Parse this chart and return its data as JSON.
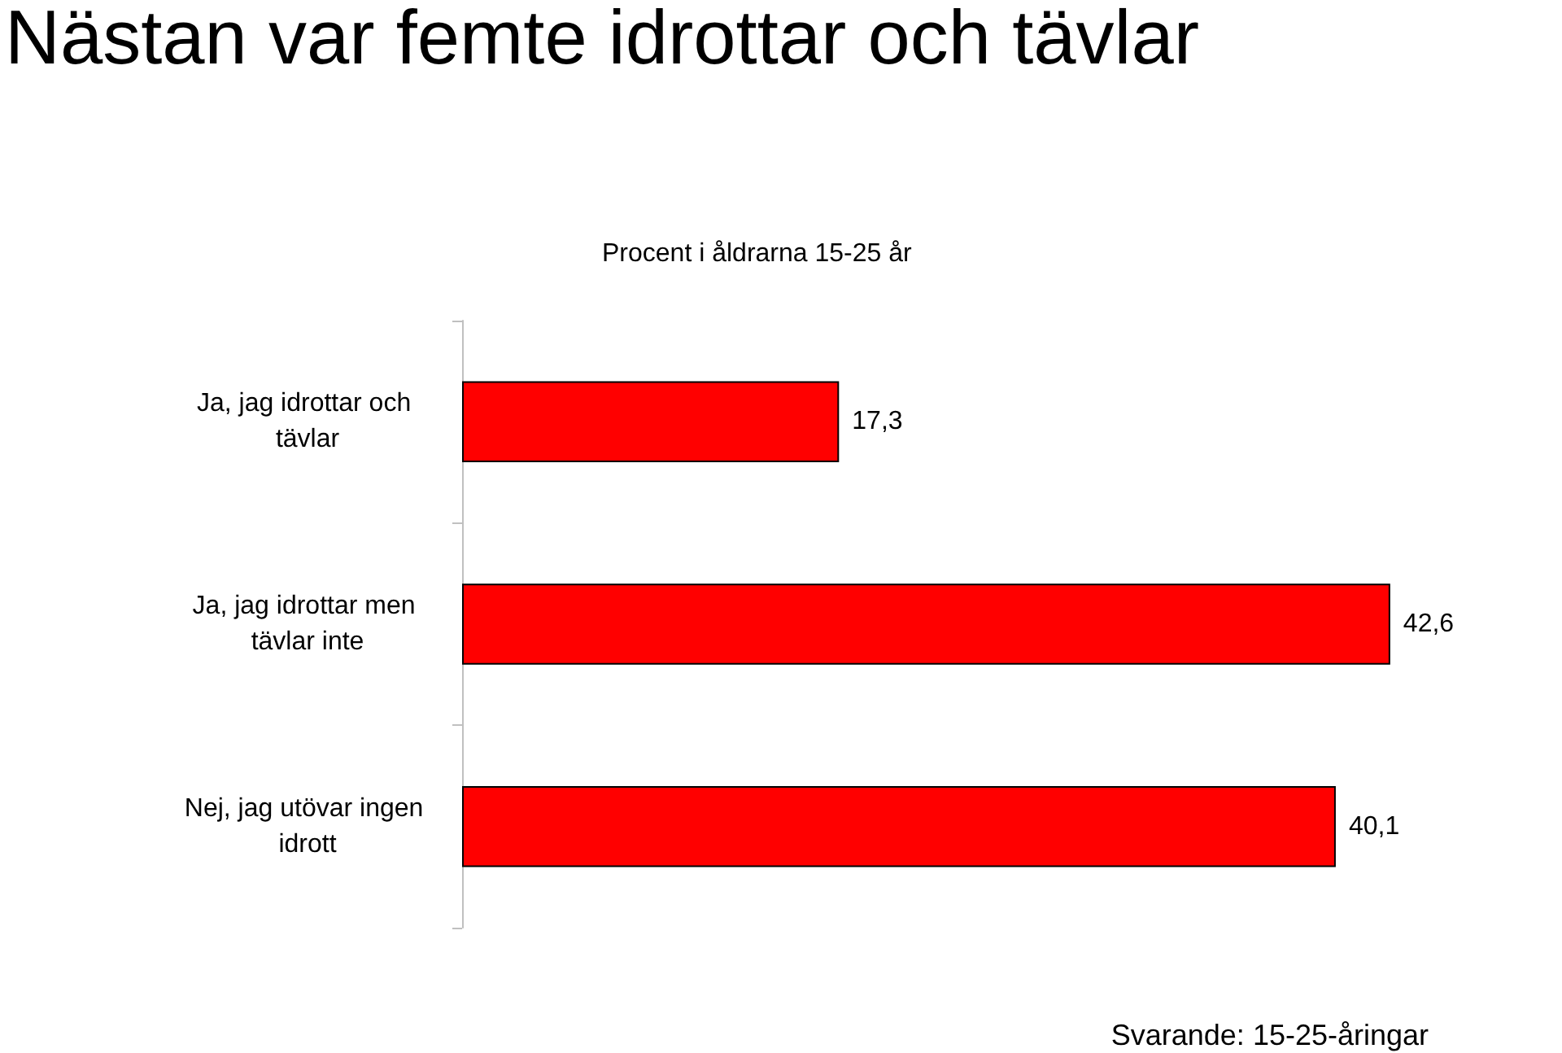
{
  "chart_data": {
    "type": "bar",
    "orientation": "horizontal",
    "title": "Nästan var femte idrottar och tävlar",
    "subtitle": "Procent i åldrarna 15-25 år",
    "categories": [
      "Ja, jag idrottar och tävlar",
      "Ja, jag idrottar men tävlar inte",
      "Nej, jag utövar ingen idrott"
    ],
    "values": [
      17.3,
      42.6,
      40.1
    ],
    "value_labels": [
      "17,3",
      "42,6",
      "40,1"
    ],
    "color": "#ff0000",
    "annotations": [
      "Svarande: 15-25-åringar"
    ]
  }
}
